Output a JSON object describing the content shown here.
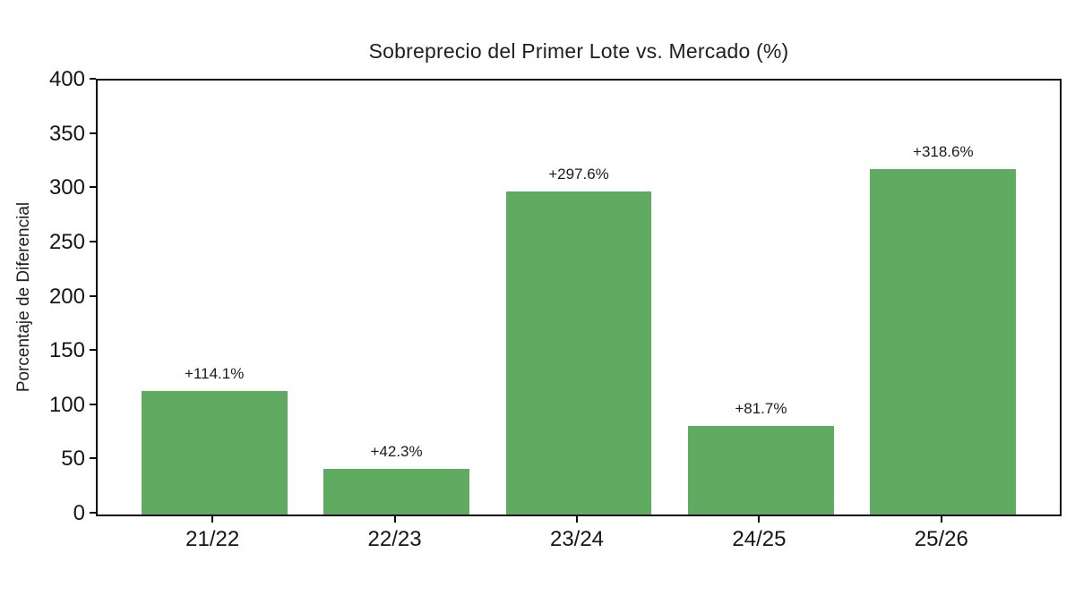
{
  "chart_data": {
    "type": "bar",
    "title": "Sobreprecio del Primer Lote vs. Mercado (%)",
    "xlabel": "",
    "ylabel": "Porcentaje de Diferencial",
    "categories": [
      "21/22",
      "22/23",
      "23/24",
      "24/25",
      "25/26"
    ],
    "values": [
      114.1,
      42.3,
      297.6,
      81.7,
      318.6
    ],
    "bar_labels": [
      "+114.1%",
      "+42.3%",
      "+297.6%",
      "+81.7%",
      "+318.6%"
    ],
    "ylim": [
      0,
      400
    ],
    "yticks": [
      0,
      50,
      100,
      150,
      200,
      250,
      300,
      350,
      400
    ],
    "grid": false,
    "legend": "none",
    "bar_color": "#5fab62",
    "text_color": "#1b1b1b",
    "spine_color": "#0a0a0a",
    "x_margin_units": 0.64,
    "bar_width_units": 0.8
  }
}
